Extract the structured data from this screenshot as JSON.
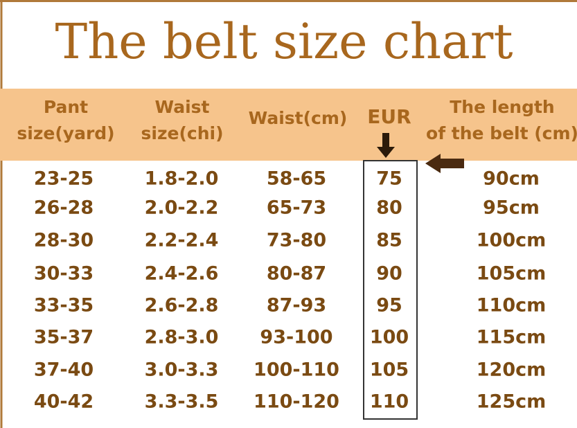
{
  "title": "The belt size chart",
  "header": [
    [
      "Pant",
      "size(yard)"
    ],
    [
      "Waist",
      "size(chi)"
    ],
    [
      "Waist(cm)"
    ],
    [
      "EUR"
    ],
    [
      "The length",
      "of the belt (cm)"
    ]
  ],
  "rows": [
    [
      "23-25",
      "1.8-2.0",
      "58-65",
      "75",
      "90cm"
    ],
    [
      "26-28",
      "2.0-2.2",
      "65-73",
      "80",
      "95cm"
    ],
    [
      "28-30",
      "2.2-2.4",
      "73-80",
      "85",
      "100cm"
    ],
    [
      "30-33",
      "2.4-2.6",
      "80-87",
      "90",
      "105cm"
    ],
    [
      "33-35",
      "2.6-2.8",
      "87-93",
      "95",
      "110cm"
    ],
    [
      "35-37",
      "2.8-3.0",
      "93-100",
      "100",
      "115cm"
    ],
    [
      "37-40",
      "3.0-3.3",
      "100-110",
      "105",
      "120cm"
    ],
    [
      "40-42",
      "3.3-3.5",
      "110-120",
      "110",
      "125cm"
    ]
  ]
}
